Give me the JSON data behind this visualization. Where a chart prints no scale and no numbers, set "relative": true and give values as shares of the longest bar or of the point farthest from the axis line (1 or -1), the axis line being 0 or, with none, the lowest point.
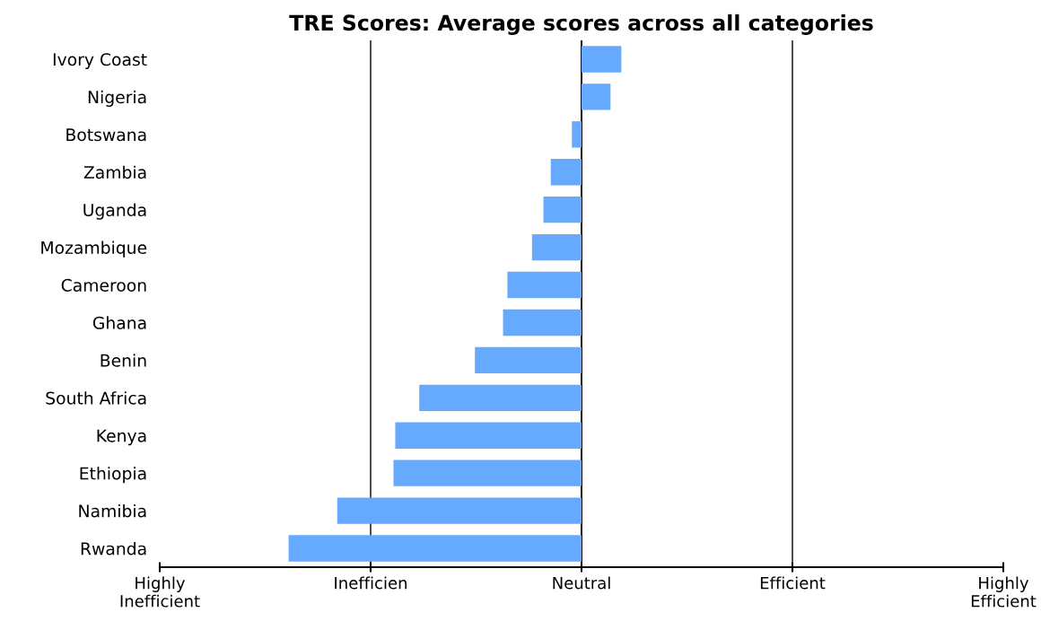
{
  "chart_data": {
    "type": "bar",
    "orientation": "horizontal",
    "relative": true,
    "title": "TRE Scores: Average scores across all categories",
    "categories": [
      "Ivory Coast",
      "Nigeria",
      "Botswana",
      "Zambia",
      "Uganda",
      "Mozambique",
      "Cameroon",
      "Ghana",
      "Benin",
      "South Africa",
      "Kenya",
      "Ethiopia",
      "Namibia",
      "Rwanda"
    ],
    "values": [
      0.136,
      0.099,
      -0.033,
      -0.105,
      -0.13,
      -0.169,
      -0.253,
      -0.268,
      -0.364,
      -0.554,
      -0.636,
      -0.642,
      -0.834,
      -1
    ],
    "color": "#66aaff",
    "annotations": [
      "Highly\nInefficient",
      "Inefficien",
      "Neutral",
      "Efficient",
      "Highly\nEfficient"
    ],
    "grid": "x"
  }
}
